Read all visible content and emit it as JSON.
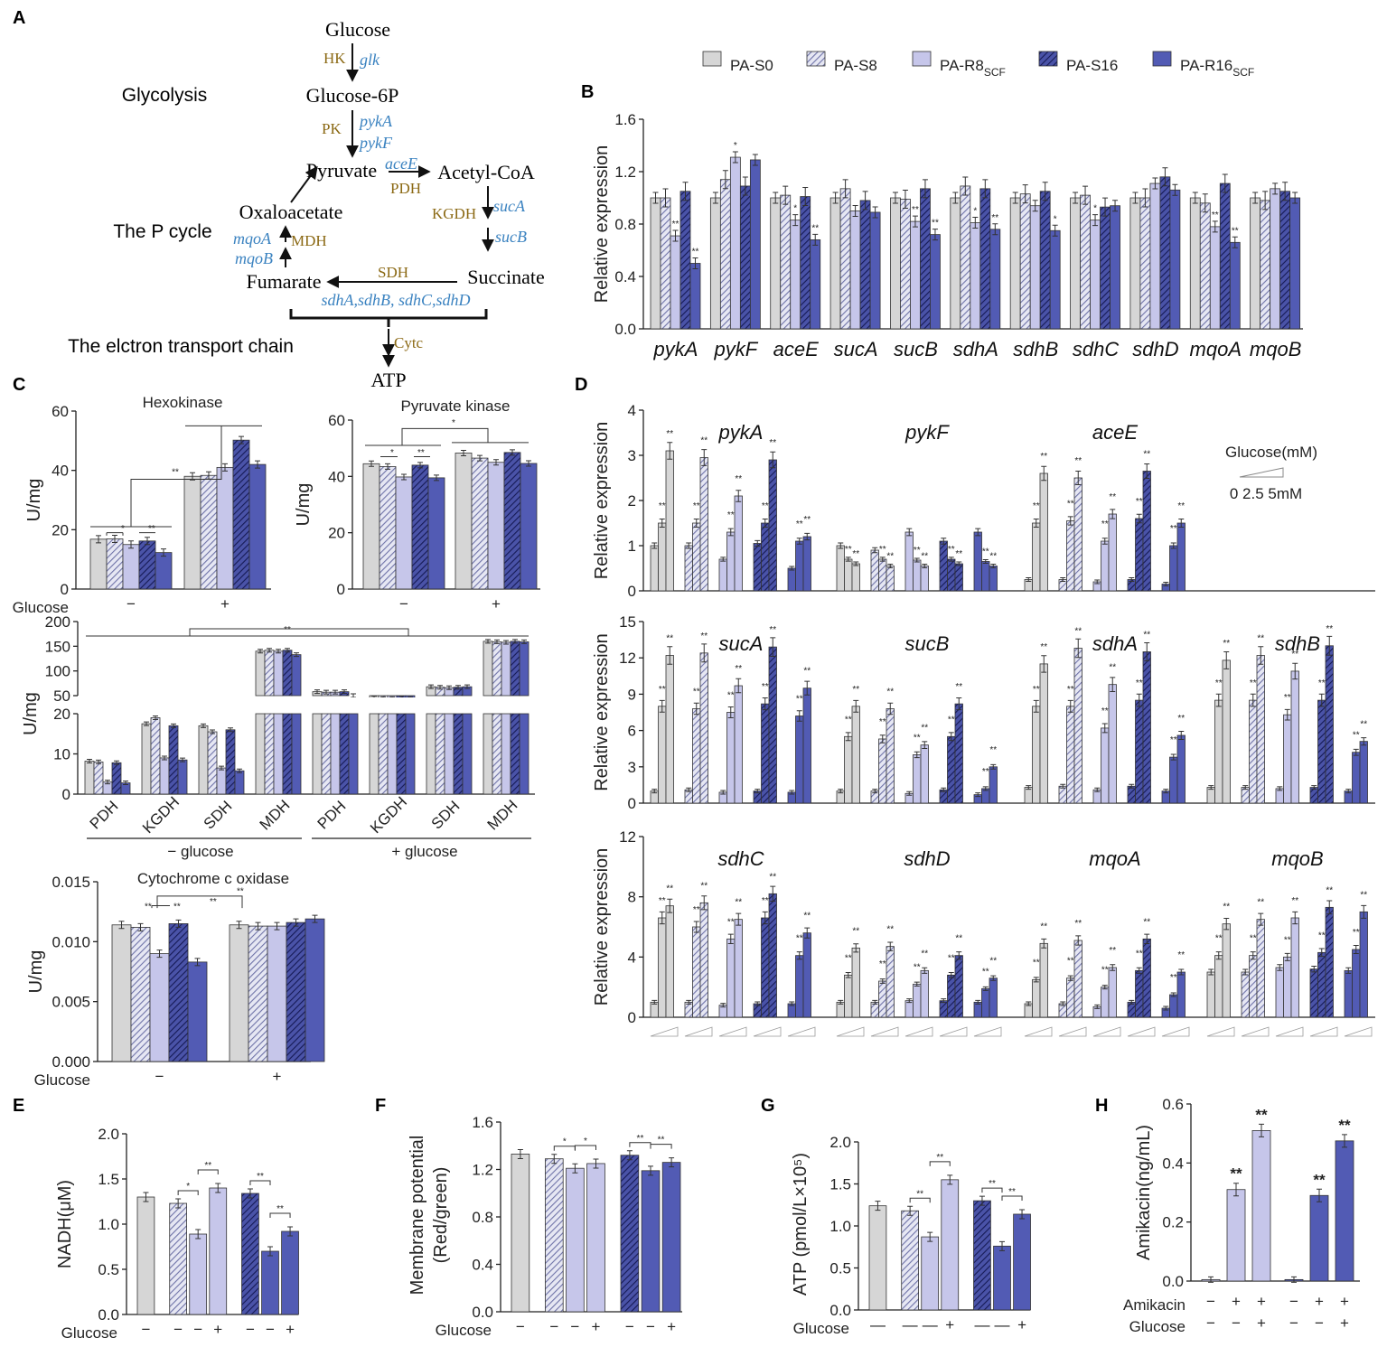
{
  "colors": {
    "s0": "#d6d6d6",
    "s8": "#a9acd6",
    "r8": "#c6c6ea",
    "s16": "#2d348c",
    "r16": "#525bb4",
    "enzyme": "#8b6914",
    "gene": "#3a82c0",
    "black": "#222222"
  },
  "panels": {
    "A": "A",
    "B": "B",
    "C": "C",
    "D": "D",
    "E": "E",
    "F": "F",
    "G": "G",
    "H": "H"
  },
  "legend": [
    {
      "key": "s0",
      "label": "PA-S0",
      "sub": ""
    },
    {
      "key": "s8",
      "label": "PA-S8",
      "sub": ""
    },
    {
      "key": "r8",
      "label": "PA-R8",
      "sub": "SCF"
    },
    {
      "key": "s16",
      "label": "PA-S16",
      "sub": ""
    },
    {
      "key": "r16",
      "label": "PA-R16",
      "sub": "SCF"
    }
  ],
  "pathway": {
    "glucose": "Glucose",
    "hk": "HK",
    "glk": "glk",
    "glucose6p": "Glucose-6P",
    "pk": "PK",
    "pykA": "pykA",
    "pykF": "pykF",
    "pyruvate": "Pyruvate",
    "aceE": "aceE",
    "pdh": "PDH",
    "acetylcoa": "Acetyl-CoA",
    "oxaloacetate": "Oxaloacetate",
    "kgdh": "KGDH",
    "sucA": "sucA",
    "sucB": "sucB",
    "mqoA": "mqoA",
    "mdh": "MDH",
    "mqoB": "mqoB",
    "sdh": "SDH",
    "succinate": "Succinate",
    "fumarate": "Fumarate",
    "sdhgenes": "sdhA,sdhB, sdhC,sdhD",
    "cytc": "Cytc",
    "atp": "ATP",
    "glycolysis": "Glycolysis",
    "pcycle": "The P cycle",
    "etc": "The elctron transport chain"
  },
  "chart_data": [
    {
      "id": "B",
      "type": "bar",
      "ylabel": "Relative expression",
      "ylim": [
        0,
        1.6
      ],
      "yticks": [
        "0.0",
        "0.4",
        "0.8",
        "1.2",
        "1.6"
      ],
      "categories": [
        "pykA",
        "pykF",
        "aceE",
        "sucA",
        "sucB",
        "sdhA",
        "sdhB",
        "sdhC",
        "sdhD",
        "mqoA",
        "mqoB"
      ],
      "series": [
        {
          "name": "PA-S0",
          "values": [
            1.0,
            1.0,
            1.0,
            1.0,
            1.0,
            1.0,
            1.0,
            1.0,
            1.0,
            1.0,
            1.0
          ]
        },
        {
          "name": "PA-S8",
          "values": [
            1.0,
            1.14,
            1.02,
            1.07,
            0.99,
            1.09,
            1.03,
            1.02,
            1.0,
            0.96,
            0.98
          ]
        },
        {
          "name": "PA-R8SCF",
          "values": [
            0.71,
            1.31,
            0.83,
            0.9,
            0.82,
            0.81,
            0.94,
            0.83,
            1.11,
            0.78,
            1.07
          ]
        },
        {
          "name": "PA-S16",
          "values": [
            1.05,
            1.09,
            1.01,
            0.98,
            1.07,
            1.07,
            1.05,
            0.93,
            1.16,
            1.11,
            1.05
          ]
        },
        {
          "name": "PA-R16SCF",
          "values": [
            0.5,
            1.29,
            0.68,
            0.89,
            0.72,
            0.76,
            0.75,
            0.94,
            1.06,
            0.66,
            1.0
          ]
        }
      ],
      "sig": [
        [
          "",
          "",
          "**",
          "",
          "**"
        ],
        [
          "",
          "",
          "*",
          "",
          ""
        ],
        [
          "",
          "",
          "*",
          "",
          "**"
        ],
        [
          "",
          "",
          "",
          "",
          ""
        ],
        [
          "",
          "",
          "**",
          "",
          "**"
        ],
        [
          "",
          "",
          "*",
          "",
          "**"
        ],
        [
          "",
          "",
          "",
          "",
          "*"
        ],
        [
          "",
          "",
          "*",
          "",
          ""
        ],
        [
          "",
          "",
          "",
          "",
          ""
        ],
        [
          "",
          "",
          "**",
          "",
          "**"
        ],
        [
          "",
          "",
          "",
          "",
          ""
        ]
      ]
    },
    {
      "id": "C1",
      "type": "bar",
      "title": "Hexokinase",
      "ylabel": "U/mg",
      "ylim": [
        0,
        60
      ],
      "yticks": [
        "0",
        "20",
        "40",
        "60"
      ],
      "categories": [
        "−",
        "+"
      ],
      "xlabel": "Glucose",
      "series": [
        {
          "name": "PA-S0",
          "values": [
            16.8,
            38.0
          ]
        },
        {
          "name": "PA-S8",
          "values": [
            16.9,
            38.3
          ]
        },
        {
          "name": "PA-R8SCF",
          "values": [
            15.0,
            41.0
          ]
        },
        {
          "name": "PA-S16",
          "values": [
            16.2,
            50.2
          ]
        },
        {
          "name": "PA-R16SCF",
          "values": [
            12.3,
            42.0
          ]
        }
      ],
      "sig": [
        "*",
        "**",
        "**"
      ]
    },
    {
      "id": "C2",
      "type": "bar",
      "title": "Pyruvate kinase",
      "ylabel": "U/mg",
      "ylim": [
        0,
        60
      ],
      "yticks": [
        "0",
        "20",
        "40",
        "60"
      ],
      "categories": [
        "−",
        "+"
      ],
      "series": [
        {
          "name": "PA-S0",
          "values": [
            44.5,
            48.3
          ]
        },
        {
          "name": "PA-S8",
          "values": [
            43.5,
            46.5
          ]
        },
        {
          "name": "PA-R8SCF",
          "values": [
            39.8,
            45.0
          ]
        },
        {
          "name": "PA-S16",
          "values": [
            44.0,
            48.5
          ]
        },
        {
          "name": "PA-R16SCF",
          "values": [
            39.5,
            44.6
          ]
        }
      ],
      "sig": [
        "*",
        "**",
        "*"
      ]
    },
    {
      "id": "C3",
      "type": "bar",
      "ylabel": "U/mg",
      "yticks_low": [
        "0",
        "10",
        "20"
      ],
      "yticks_high": [
        "50",
        "100",
        "150",
        "200"
      ],
      "categories": [
        "PDH",
        "KGDH",
        "SDH",
        "MDH",
        "PDH",
        "KGDH",
        "SDH",
        "MDH"
      ],
      "group_labels": [
        "− glucose",
        "+ glucose"
      ],
      "series": [
        {
          "name": "PA-S0",
          "values": [
            8.2,
            17.5,
            17.0,
            140,
            58,
            45,
            68,
            160
          ]
        },
        {
          "name": "PA-S8",
          "values": [
            8.0,
            19.0,
            15.5,
            142,
            57,
            44,
            67,
            159
          ]
        },
        {
          "name": "PA-R8SCF",
          "values": [
            3.0,
            9.0,
            6.5,
            140,
            57,
            44,
            66,
            158
          ]
        },
        {
          "name": "PA-S16",
          "values": [
            7.8,
            17.0,
            16.0,
            142,
            58,
            45,
            67,
            160
          ]
        },
        {
          "name": "PA-R16SCF",
          "values": [
            2.8,
            8.5,
            5.8,
            133,
            50,
            44,
            68,
            159
          ]
        }
      ],
      "sig": [
        "**",
        "**"
      ]
    },
    {
      "id": "C4",
      "type": "bar",
      "title": "Cytochrome c oxidase",
      "ylabel": "U/mg",
      "ylim": [
        0,
        0.015
      ],
      "yticks": [
        "0.000",
        "0.005",
        "0.010",
        "0.015"
      ],
      "categories": [
        "−",
        "+"
      ],
      "xlabel": "Glucose",
      "series": [
        {
          "name": "PA-S0",
          "values": [
            0.0114,
            0.0114
          ]
        },
        {
          "name": "PA-S8",
          "values": [
            0.0112,
            0.0113
          ]
        },
        {
          "name": "PA-R8SCF",
          "values": [
            0.009,
            0.0113
          ]
        },
        {
          "name": "PA-S16",
          "values": [
            0.0115,
            0.0116
          ]
        },
        {
          "name": "PA-R16SCF",
          "values": [
            0.0083,
            0.0119
          ]
        }
      ],
      "sig": [
        "**",
        "**",
        "**",
        "**"
      ]
    },
    {
      "id": "D",
      "type": "bar",
      "ylabel": "Relative expression",
      "legend_title": "Glucose(mM)",
      "legend_ticks": "0  2.5  5mM",
      "rows": [
        {
          "ylim": [
            0,
            4
          ],
          "yticks": [
            "0",
            "1",
            "2",
            "3",
            "4"
          ],
          "genes": [
            "pykA",
            "pykF",
            "aceE"
          ],
          "values": [
            [
              [
                1.0,
                1.5,
                3.1
              ],
              [
                1.0,
                1.5,
                2.95
              ],
              [
                0.7,
                1.3,
                2.1
              ],
              [
                1.05,
                1.5,
                2.9
              ],
              [
                0.5,
                1.1,
                1.2
              ]
            ],
            [
              [
                1.0,
                0.7,
                0.6
              ],
              [
                0.9,
                0.7,
                0.55
              ],
              [
                1.3,
                0.68,
                0.55
              ],
              [
                1.1,
                0.7,
                0.6
              ],
              [
                1.3,
                0.65,
                0.55
              ]
            ],
            [
              [
                0.25,
                1.5,
                2.6
              ],
              [
                0.25,
                1.55,
                2.5
              ],
              [
                0.2,
                1.1,
                1.7
              ],
              [
                0.25,
                1.6,
                2.65
              ],
              [
                0.15,
                1.0,
                1.5
              ]
            ]
          ]
        },
        {
          "ylim": [
            0,
            15
          ],
          "yticks": [
            "0",
            "3",
            "6",
            "9",
            "12",
            "15"
          ],
          "genes": [
            "sucA",
            "sucB",
            "sdhA",
            "sdhB"
          ],
          "values": [
            [
              [
                1.0,
                8.0,
                12.2
              ],
              [
                1.1,
                7.8,
                12.4
              ],
              [
                0.9,
                7.5,
                9.7
              ],
              [
                1.0,
                8.2,
                12.9
              ],
              [
                0.9,
                7.2,
                9.5
              ]
            ],
            [
              [
                1.0,
                5.5,
                8.0
              ],
              [
                1.0,
                5.3,
                7.8
              ],
              [
                0.8,
                4.0,
                4.8
              ],
              [
                1.1,
                5.5,
                8.2
              ],
              [
                0.7,
                1.2,
                3.0
              ]
            ],
            [
              [
                1.3,
                8.0,
                11.5
              ],
              [
                1.4,
                8.0,
                12.8
              ],
              [
                1.1,
                6.2,
                9.8
              ],
              [
                1.4,
                8.5,
                12.5
              ],
              [
                1.0,
                3.8,
                5.6
              ]
            ],
            [
              [
                1.3,
                8.5,
                11.8
              ],
              [
                1.3,
                8.5,
                12.2
              ],
              [
                1.2,
                7.3,
                10.9
              ],
              [
                1.3,
                8.5,
                13.0
              ],
              [
                1.0,
                4.2,
                5.1
              ]
            ]
          ]
        },
        {
          "ylim": [
            0,
            12
          ],
          "yticks": [
            "0",
            "4",
            "8",
            "12"
          ],
          "genes": [
            "sdhC",
            "sdhD",
            "mqoA",
            "mqoB"
          ],
          "values": [
            [
              [
                1.0,
                6.6,
                7.4
              ],
              [
                1.0,
                6.0,
                7.6
              ],
              [
                0.8,
                5.2,
                6.5
              ],
              [
                0.9,
                6.6,
                8.2
              ],
              [
                0.9,
                4.1,
                5.6
              ]
            ],
            [
              [
                1.0,
                2.8,
                4.6
              ],
              [
                1.0,
                2.4,
                4.7
              ],
              [
                1.1,
                2.2,
                3.1
              ],
              [
                1.1,
                2.8,
                4.1
              ],
              [
                1.0,
                1.9,
                2.6
              ]
            ],
            [
              [
                0.9,
                2.5,
                4.9
              ],
              [
                0.9,
                2.6,
                5.1
              ],
              [
                0.7,
                2.0,
                3.3
              ],
              [
                1.0,
                3.1,
                5.2
              ],
              [
                0.6,
                1.5,
                3.0
              ]
            ],
            [
              [
                3.0,
                4.1,
                6.2
              ],
              [
                3.0,
                4.1,
                6.5
              ],
              [
                3.3,
                4.0,
                6.6
              ],
              [
                3.2,
                4.3,
                7.3
              ],
              [
                3.1,
                4.5,
                7.0
              ]
            ]
          ]
        }
      ]
    },
    {
      "id": "E",
      "type": "bar",
      "ylabel": "NADH(μM)",
      "ylim": [
        0,
        2.0
      ],
      "yticks": [
        "0.0",
        "0.5",
        "1.0",
        "1.5",
        "2.0"
      ],
      "xlabel": "Glucose",
      "xsigns": [
        "−",
        "−",
        "−",
        "+",
        "−",
        "−",
        "+"
      ],
      "values": [
        1.3,
        1.23,
        0.89,
        1.4,
        1.34,
        0.7,
        0.92
      ],
      "colors": [
        "s0",
        "s8",
        "r8",
        "r8",
        "s16",
        "r16",
        "r16"
      ],
      "sig": [
        "*",
        "**",
        "**",
        "**"
      ]
    },
    {
      "id": "F",
      "type": "bar",
      "ylabel": "Membrane potential (Red/green)",
      "ylim": [
        0,
        1.6
      ],
      "yticks": [
        "0.0",
        "0.4",
        "0.8",
        "1.2",
        "1.6"
      ],
      "xlabel": "Glucose",
      "xsigns": [
        "−",
        "−",
        "−",
        "+",
        "−",
        "−",
        "+"
      ],
      "values": [
        1.33,
        1.29,
        1.21,
        1.25,
        1.32,
        1.19,
        1.26
      ],
      "colors": [
        "s0",
        "s8",
        "r8",
        "r8",
        "s16",
        "r16",
        "r16"
      ],
      "sig": [
        "*",
        "*",
        "**",
        "**"
      ]
    },
    {
      "id": "G",
      "type": "bar",
      "ylabel": "ATP (pmol/L×10⁵)",
      "ylim": [
        0,
        2.0
      ],
      "yticks": [
        "0.0",
        "0.5",
        "1.0",
        "1.5",
        "2.0"
      ],
      "xlabel": "Glucose",
      "xsigns": [
        "—",
        "—",
        "—",
        "+",
        "—",
        "—",
        "+"
      ],
      "values": [
        1.24,
        1.18,
        0.87,
        1.55,
        1.3,
        0.76,
        1.14
      ],
      "colors": [
        "s0",
        "s8",
        "r8",
        "r8",
        "s16",
        "r16",
        "r16"
      ],
      "sig": [
        "**",
        "**",
        "**",
        "**"
      ]
    },
    {
      "id": "H",
      "type": "bar",
      "ylabel": "Amikacin(ng/mL)",
      "ylim": [
        0,
        0.6
      ],
      "yticks": [
        "0.0",
        "0.2",
        "0.4",
        "0.6"
      ],
      "xlabel": "Amikacin",
      "xlabel2": "Glucose",
      "xsigns": [
        "−",
        "+",
        "+",
        "−",
        "+",
        "+"
      ],
      "xsigns2": [
        "−",
        "−",
        "+",
        "−",
        "−",
        "+"
      ],
      "values": [
        0.005,
        0.31,
        0.51,
        0.005,
        0.29,
        0.475
      ],
      "colors": [
        "r8",
        "r8",
        "r8",
        "r16",
        "r16",
        "r16"
      ],
      "sig": [
        "",
        "**",
        "**",
        "",
        "**",
        "**"
      ]
    }
  ]
}
